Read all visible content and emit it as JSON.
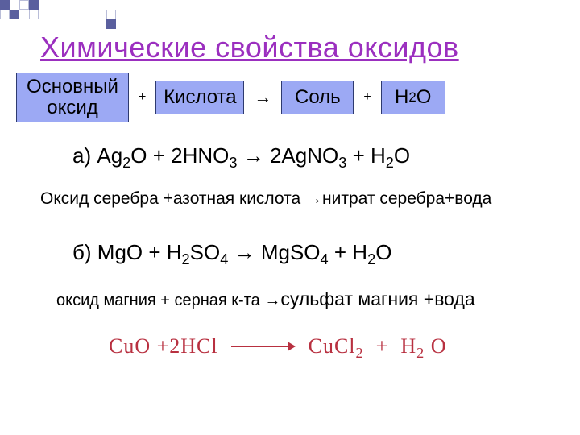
{
  "title": "Химические свойства оксидов",
  "scheme": {
    "box1_line1": "Основный",
    "box1_line2": "оксид",
    "plus1": "+",
    "box2": "Кислота",
    "arrow": "→",
    "box3": "Соль",
    "plus2": "+",
    "box4_base": "Н",
    "box4_sub": "2",
    "box4_o": "О",
    "box_bg": "#9CA9F4",
    "box_border": "#2e3a6f"
  },
  "eq_a": {
    "label": "а)",
    "text_html": "Ag<sub>2</sub>O + 2HNO<sub>3</sub> → 2AgNO<sub>3</sub> + H<sub>2</sub>O"
  },
  "desc_a": "Оксид серебра +азотная кислота →нитрат серебра+вода",
  "eq_b": {
    "label": "б)",
    "text_html": "MgO + H<sub>2</sub>SO<sub>4</sub> → MgSO<sub>4</sub> + H<sub>2</sub>O"
  },
  "desc_b_small": "оксид магния + серная к-та →",
  "desc_b_big": "сульфат магния +вода",
  "handwritten": {
    "left": "CuO  +2HCl",
    "right1": "CuCl",
    "right1_sub": "2",
    "plus": "+",
    "right2": "H",
    "right2_sub": "2",
    "right2_o": "O",
    "color": "#b83040"
  },
  "colors": {
    "title": "#9b2fbf",
    "text": "#000000",
    "background": "#ffffff",
    "deco_fill": "#5a5f9e",
    "deco_outline": "#b9bdd8"
  }
}
